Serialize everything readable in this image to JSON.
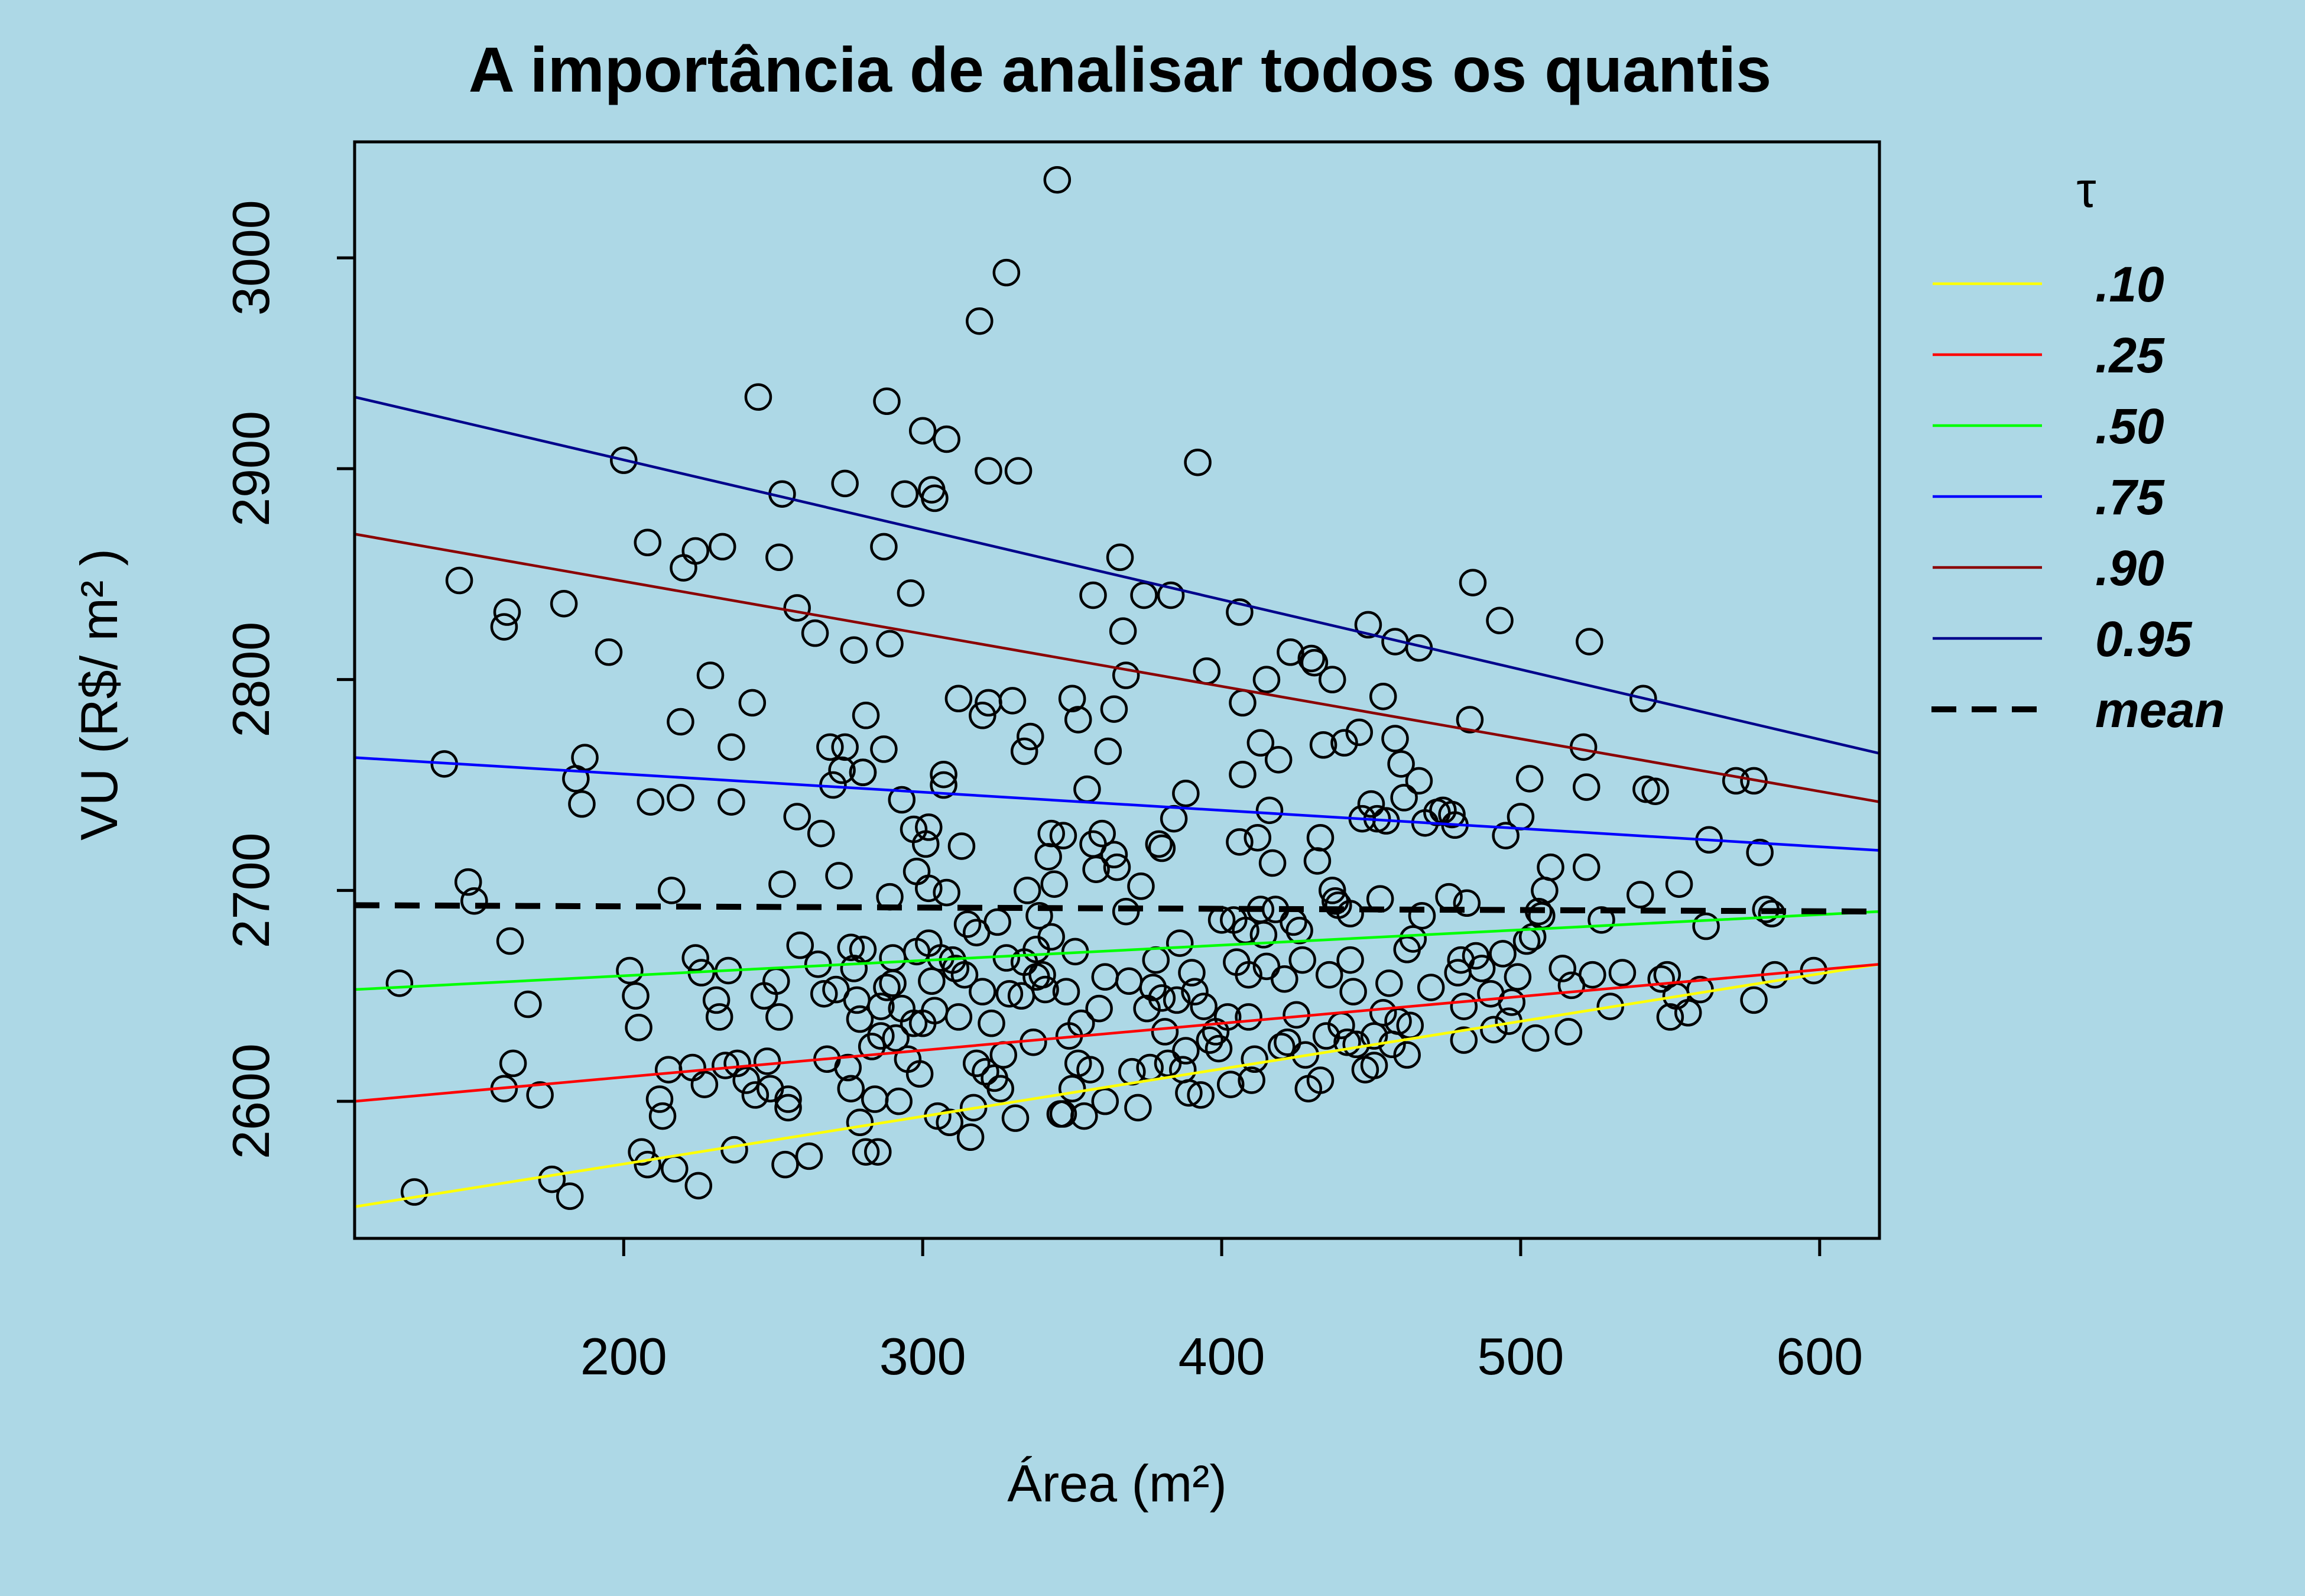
{
  "chart_data": {
    "type": "scatter",
    "title": "A importância de analisar todos os quantis",
    "xlabel": "Área (m²)",
    "ylabel": "VU (R$/ m² )",
    "xlim": [
      110,
      620
    ],
    "ylim": [
      2535,
      3055
    ],
    "xticks": [
      200,
      300,
      400,
      500,
      600
    ],
    "yticks": [
      2600,
      2700,
      2800,
      2900,
      3000
    ],
    "grid": false,
    "legend": {
      "title": "τ",
      "position": "right-outside",
      "entries": [
        {
          "label": ".10",
          "color": "#ffff00",
          "dash": "solid"
        },
        {
          "label": ".25",
          "color": "#ff0000",
          "dash": "solid"
        },
        {
          "label": ".50",
          "color": "#00ff00",
          "dash": "solid"
        },
        {
          "label": ".75",
          "color": "#0000ff",
          "dash": "solid"
        },
        {
          "label": ".90",
          "color": "#8b0000",
          "dash": "solid"
        },
        {
          "label": "0.95",
          "color": "#00008b",
          "dash": "solid"
        },
        {
          "label": "mean",
          "color": "#000000",
          "dash": "dashed"
        }
      ]
    },
    "lines": [
      {
        "label": ".10",
        "color": "#ffff00",
        "dash": "solid",
        "x": [
          110,
          620
        ],
        "y": [
          2550,
          2665
        ]
      },
      {
        "label": ".25",
        "color": "#ff0000",
        "dash": "solid",
        "x": [
          110,
          620
        ],
        "y": [
          2600,
          2665
        ]
      },
      {
        "label": ".50",
        "color": "#00ff00",
        "dash": "solid",
        "x": [
          110,
          620
        ],
        "y": [
          2653,
          2690
        ]
      },
      {
        "label": ".75",
        "color": "#0000ff",
        "dash": "solid",
        "x": [
          110,
          620
        ],
        "y": [
          2763,
          2719
        ]
      },
      {
        "label": ".90",
        "color": "#8b0000",
        "dash": "solid",
        "x": [
          110,
          620
        ],
        "y": [
          2869,
          2742
        ]
      },
      {
        "label": "0.95",
        "color": "#00008b",
        "dash": "solid",
        "x": [
          110,
          620
        ],
        "y": [
          2934,
          2765
        ]
      },
      {
        "label": "mean",
        "color": "#000000",
        "dash": "dashed",
        "x": [
          110,
          620
        ],
        "y": [
          2693,
          2690
        ]
      }
    ],
    "points": [
      [
        125,
        2656
      ],
      [
        130,
        2557
      ],
      [
        140,
        2760
      ],
      [
        145,
        2847
      ],
      [
        148,
        2704
      ],
      [
        150,
        2695
      ],
      [
        160,
        2825
      ],
      [
        161,
        2832
      ],
      [
        160,
        2606
      ],
      [
        162,
        2676
      ],
      [
        163,
        2618
      ],
      [
        168,
        2646
      ],
      [
        172,
        2603
      ],
      [
        176,
        2563
      ],
      [
        180,
        2836
      ],
      [
        182,
        2555
      ],
      [
        184,
        2753
      ],
      [
        186,
        2741
      ],
      [
        187,
        2763
      ],
      [
        195,
        2813
      ],
      [
        200,
        2904
      ],
      [
        202,
        2662
      ],
      [
        204,
        2650
      ],
      [
        205,
        2635
      ],
      [
        206,
        2576
      ],
      [
        208,
        2570
      ],
      [
        208,
        2865
      ],
      [
        209,
        2742
      ],
      [
        212,
        2601
      ],
      [
        213,
        2593
      ],
      [
        215,
        2615
      ],
      [
        216,
        2700
      ],
      [
        217,
        2568
      ],
      [
        219,
        2744
      ],
      [
        219,
        2780
      ],
      [
        220,
        2853
      ],
      [
        223,
        2616
      ],
      [
        224,
        2861
      ],
      [
        224,
        2668
      ],
      [
        225,
        2560
      ],
      [
        226,
        2661
      ],
      [
        227,
        2608
      ],
      [
        229,
        2802
      ],
      [
        231,
        2648
      ],
      [
        232,
        2640
      ],
      [
        233,
        2863
      ],
      [
        234,
        2617
      ],
      [
        235,
        2662
      ],
      [
        236,
        2742
      ],
      [
        236,
        2768
      ],
      [
        237,
        2577
      ],
      [
        238,
        2618
      ],
      [
        241,
        2610
      ],
      [
        243,
        2789
      ],
      [
        244,
        2603
      ],
      [
        245,
        2934
      ],
      [
        247,
        2650
      ],
      [
        248,
        2619
      ],
      [
        249,
        2606
      ],
      [
        251,
        2657
      ],
      [
        252,
        2640
      ],
      [
        252,
        2858
      ],
      [
        253,
        2703
      ],
      [
        253,
        2888
      ],
      [
        254,
        2570
      ],
      [
        255,
        2601
      ],
      [
        255,
        2597
      ],
      [
        258,
        2834
      ],
      [
        258,
        2735
      ],
      [
        259,
        2674
      ],
      [
        262,
        2574
      ],
      [
        264,
        2822
      ],
      [
        265,
        2665
      ],
      [
        266,
        2727
      ],
      [
        267,
        2651
      ],
      [
        268,
        2620
      ],
      [
        269,
        2768
      ],
      [
        270,
        2750
      ],
      [
        271,
        2653
      ],
      [
        272,
        2707
      ],
      [
        273,
        2757
      ],
      [
        274,
        2768
      ],
      [
        274,
        2893
      ],
      [
        275,
        2616
      ],
      [
        276,
        2606
      ],
      [
        276,
        2673
      ],
      [
        277,
        2663
      ],
      [
        277,
        2814
      ],
      [
        278,
        2648
      ],
      [
        279,
        2590
      ],
      [
        279,
        2639
      ],
      [
        280,
        2756
      ],
      [
        280,
        2756
      ],
      [
        280,
        2672
      ],
      [
        281,
        2576
      ],
      [
        281,
        2783
      ],
      [
        283,
        2626
      ],
      [
        284,
        2601
      ],
      [
        285,
        2576
      ],
      [
        286,
        2645
      ],
      [
        286,
        2631
      ],
      [
        287,
        2863
      ],
      [
        287,
        2767
      ],
      [
        288,
        2932
      ],
      [
        288,
        2654
      ],
      [
        289,
        2817
      ],
      [
        289,
        2697
      ],
      [
        290,
        2668
      ],
      [
        290,
        2656
      ],
      [
        291,
        2630
      ],
      [
        292,
        2600
      ],
      [
        293,
        2644
      ],
      [
        293,
        2743
      ],
      [
        294,
        2888
      ],
      [
        295,
        2620
      ],
      [
        296,
        2841
      ],
      [
        297,
        2729
      ],
      [
        297,
        2637
      ],
      [
        298,
        2671
      ],
      [
        298,
        2709
      ],
      [
        299,
        2613
      ],
      [
        300,
        2637
      ],
      [
        300,
        2918
      ],
      [
        301,
        2722
      ],
      [
        302,
        2675
      ],
      [
        302,
        2730
      ],
      [
        302,
        2701
      ],
      [
        303,
        2657
      ],
      [
        303,
        2890
      ],
      [
        304,
        2643
      ],
      [
        304,
        2886
      ],
      [
        305,
        2593
      ],
      [
        306,
        2668
      ],
      [
        307,
        2750
      ],
      [
        307,
        2755
      ],
      [
        308,
        2699
      ],
      [
        308,
        2914
      ],
      [
        309,
        2590
      ],
      [
        310,
        2667
      ],
      [
        311,
        2663
      ],
      [
        312,
        2791
      ],
      [
        312,
        2640
      ],
      [
        313,
        2721
      ],
      [
        314,
        2660
      ],
      [
        315,
        2684
      ],
      [
        316,
        2583
      ],
      [
        317,
        2597
      ],
      [
        318,
        2618
      ],
      [
        318,
        2680
      ],
      [
        319,
        2970
      ],
      [
        320,
        2652
      ],
      [
        320,
        2783
      ],
      [
        321,
        2614
      ],
      [
        322,
        2899
      ],
      [
        322,
        2789
      ],
      [
        323,
        2637
      ],
      [
        324,
        2611
      ],
      [
        325,
        2685
      ],
      [
        326,
        2606
      ],
      [
        327,
        2622
      ],
      [
        328,
        2993
      ],
      [
        328,
        2668
      ],
      [
        329,
        2651
      ],
      [
        330,
        2790
      ],
      [
        331,
        2592
      ],
      [
        332,
        2899
      ],
      [
        333,
        2650
      ],
      [
        334,
        2666
      ],
      [
        334,
        2766
      ],
      [
        335,
        2700
      ],
      [
        336,
        2773
      ],
      [
        337,
        2628
      ],
      [
        338,
        2659
      ],
      [
        338,
        2672
      ],
      [
        339,
        2688
      ],
      [
        340,
        2660
      ],
      [
        341,
        2653
      ],
      [
        342,
        2716
      ],
      [
        343,
        2727
      ],
      [
        343,
        2678
      ],
      [
        344,
        2703
      ],
      [
        345,
        3037
      ],
      [
        346,
        2594
      ],
      [
        347,
        2594
      ],
      [
        347,
        2726
      ],
      [
        348,
        2652
      ],
      [
        349,
        2631
      ],
      [
        350,
        2606
      ],
      [
        350,
        2791
      ],
      [
        351,
        2671
      ],
      [
        352,
        2618
      ],
      [
        352,
        2781
      ],
      [
        353,
        2637
      ],
      [
        354,
        2593
      ],
      [
        355,
        2748
      ],
      [
        356,
        2615
      ],
      [
        357,
        2722
      ],
      [
        357,
        2840
      ],
      [
        358,
        2710
      ],
      [
        359,
        2644
      ],
      [
        360,
        2727
      ],
      [
        361,
        2659
      ],
      [
        361,
        2600
      ],
      [
        362,
        2766
      ],
      [
        364,
        2717
      ],
      [
        364,
        2786
      ],
      [
        365,
        2711
      ],
      [
        366,
        2858
      ],
      [
        367,
        2823
      ],
      [
        368,
        2690
      ],
      [
        368,
        2802
      ],
      [
        369,
        2657
      ],
      [
        370,
        2614
      ],
      [
        372,
        2597
      ],
      [
        373,
        2702
      ],
      [
        374,
        2840
      ],
      [
        375,
        2644
      ],
      [
        376,
        2616
      ],
      [
        377,
        2654
      ],
      [
        378,
        2667
      ],
      [
        379,
        2722
      ],
      [
        380,
        2720
      ],
      [
        380,
        2649
      ],
      [
        381,
        2633
      ],
      [
        382,
        2618
      ],
      [
        383,
        2840
      ],
      [
        384,
        2734
      ],
      [
        385,
        2648
      ],
      [
        386,
        2675
      ],
      [
        387,
        2615
      ],
      [
        388,
        2624
      ],
      [
        388,
        2746
      ],
      [
        389,
        2604
      ],
      [
        390,
        2661
      ],
      [
        391,
        2652
      ],
      [
        392,
        2903
      ],
      [
        393,
        2603
      ],
      [
        394,
        2645
      ],
      [
        395,
        2804
      ],
      [
        396,
        2629
      ],
      [
        398,
        2633
      ],
      [
        399,
        2625
      ],
      [
        400,
        2686
      ],
      [
        402,
        2640
      ],
      [
        403,
        2608
      ],
      [
        404,
        2686
      ],
      [
        405,
        2666
      ],
      [
        406,
        2723
      ],
      [
        406,
        2832
      ],
      [
        407,
        2755
      ],
      [
        407,
        2789
      ],
      [
        408,
        2681
      ],
      [
        409,
        2660
      ],
      [
        409,
        2640
      ],
      [
        410,
        2610
      ],
      [
        411,
        2620
      ],
      [
        412,
        2725
      ],
      [
        413,
        2770
      ],
      [
        413,
        2691
      ],
      [
        414,
        2679
      ],
      [
        415,
        2664
      ],
      [
        415,
        2800
      ],
      [
        416,
        2738
      ],
      [
        417,
        2713
      ],
      [
        418,
        2691
      ],
      [
        419,
        2762
      ],
      [
        420,
        2626
      ],
      [
        421,
        2658
      ],
      [
        422,
        2628
      ],
      [
        423,
        2813
      ],
      [
        424,
        2685
      ],
      [
        425,
        2641
      ],
      [
        426,
        2681
      ],
      [
        427,
        2667
      ],
      [
        428,
        2622
      ],
      [
        429,
        2606
      ],
      [
        430,
        2810
      ],
      [
        431,
        2808
      ],
      [
        432,
        2714
      ],
      [
        433,
        2610
      ],
      [
        433,
        2725
      ],
      [
        434,
        2769
      ],
      [
        435,
        2631
      ],
      [
        436,
        2660
      ],
      [
        437,
        2700
      ],
      [
        437,
        2800
      ],
      [
        438,
        2695
      ],
      [
        439,
        2693
      ],
      [
        440,
        2636
      ],
      [
        441,
        2770
      ],
      [
        442,
        2628
      ],
      [
        443,
        2689
      ],
      [
        443,
        2667
      ],
      [
        444,
        2652
      ],
      [
        445,
        2627
      ],
      [
        446,
        2775
      ],
      [
        447,
        2734
      ],
      [
        448,
        2615
      ],
      [
        449,
        2826
      ],
      [
        450,
        2741
      ],
      [
        451,
        2617
      ],
      [
        451,
        2631
      ],
      [
        452,
        2734
      ],
      [
        453,
        2696
      ],
      [
        454,
        2642
      ],
      [
        454,
        2792
      ],
      [
        455,
        2733
      ],
      [
        456,
        2656
      ],
      [
        457,
        2627
      ],
      [
        458,
        2772
      ],
      [
        458,
        2818
      ],
      [
        459,
        2638
      ],
      [
        460,
        2760
      ],
      [
        461,
        2744
      ],
      [
        462,
        2672
      ],
      [
        462,
        2622
      ],
      [
        463,
        2636
      ],
      [
        464,
        2677
      ],
      [
        466,
        2815
      ],
      [
        466,
        2752
      ],
      [
        467,
        2688
      ],
      [
        468,
        2732
      ],
      [
        470,
        2654
      ],
      [
        472,
        2737
      ],
      [
        474,
        2738
      ],
      [
        476,
        2697
      ],
      [
        477,
        2736
      ],
      [
        478,
        2731
      ],
      [
        479,
        2661
      ],
      [
        480,
        2667
      ],
      [
        481,
        2629
      ],
      [
        481,
        2645
      ],
      [
        482,
        2694
      ],
      [
        483,
        2781
      ],
      [
        484,
        2846
      ],
      [
        485,
        2669
      ],
      [
        487,
        2663
      ],
      [
        490,
        2651
      ],
      [
        491,
        2634
      ],
      [
        493,
        2828
      ],
      [
        494,
        2670
      ],
      [
        495,
        2726
      ],
      [
        496,
        2638
      ],
      [
        497,
        2647
      ],
      [
        499,
        2659
      ],
      [
        500,
        2735
      ],
      [
        502,
        2676
      ],
      [
        503,
        2753
      ],
      [
        504,
        2678
      ],
      [
        505,
        2630
      ],
      [
        506,
        2690
      ],
      [
        507,
        2688
      ],
      [
        508,
        2700
      ],
      [
        510,
        2711
      ],
      [
        514,
        2663
      ],
      [
        516,
        2633
      ],
      [
        517,
        2655
      ],
      [
        521,
        2768
      ],
      [
        522,
        2749
      ],
      [
        522,
        2711
      ],
      [
        523,
        2818
      ],
      [
        524,
        2660
      ],
      [
        527,
        2686
      ],
      [
        530,
        2645
      ],
      [
        534,
        2661
      ],
      [
        540,
        2698
      ],
      [
        541,
        2791
      ],
      [
        542,
        2748
      ],
      [
        545,
        2747
      ],
      [
        547,
        2658
      ],
      [
        549,
        2660
      ],
      [
        550,
        2640
      ],
      [
        552,
        2650
      ],
      [
        553,
        2703
      ],
      [
        556,
        2642
      ],
      [
        560,
        2653
      ],
      [
        562,
        2683
      ],
      [
        563,
        2724
      ],
      [
        572,
        2752
      ],
      [
        578,
        2648
      ],
      [
        578,
        2752
      ],
      [
        580,
        2718
      ],
      [
        582,
        2691
      ],
      [
        584,
        2689
      ],
      [
        585,
        2660
      ],
      [
        598,
        2662
      ]
    ]
  }
}
